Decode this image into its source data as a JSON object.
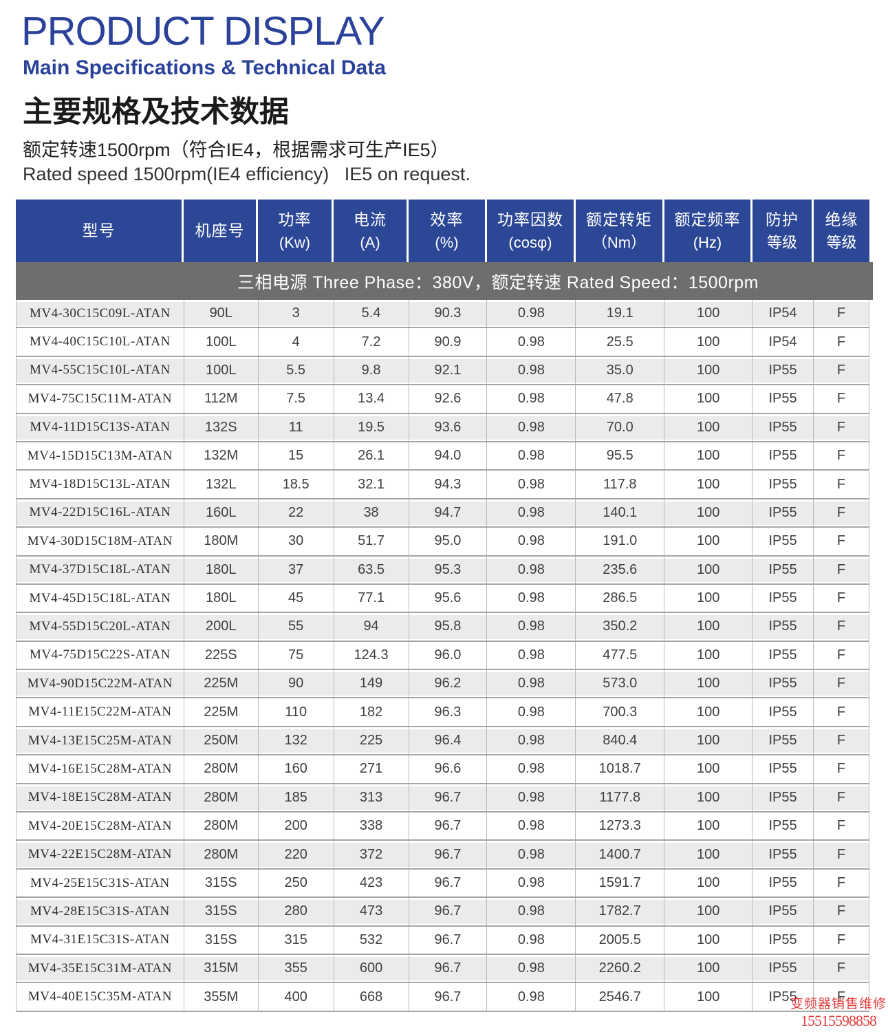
{
  "header": {
    "title": "PRODUCT DISPLAY",
    "subtitle": "Main Specifications & Technical Data",
    "heading_cn": "主要规格及技术数据",
    "spec_cn": "额定转速1500rpm（符合IE4，根据需求可生产IE5）",
    "spec_en": "Rated speed 1500rpm(IE4 efficiency)   IE5 on request."
  },
  "table": {
    "banner": "三相电源 Three Phase：380V，额定转速 Rated Speed：1500rpm",
    "columns": [
      {
        "line1": "型号",
        "line2": ""
      },
      {
        "line1": "机座号",
        "line2": ""
      },
      {
        "line1": "功率",
        "line2": "(Kw)"
      },
      {
        "line1": "电流",
        "line2": "(A)"
      },
      {
        "line1": "效率",
        "line2": "(%)"
      },
      {
        "line1": "功率因数",
        "line2": "(cosφ)"
      },
      {
        "line1": "额定转矩",
        "line2": "（Nm）"
      },
      {
        "line1": "额定频率",
        "line2": "(Hz)"
      },
      {
        "line1": "防护",
        "line2": "等级"
      },
      {
        "line1": "绝缘",
        "line2": "等级"
      }
    ],
    "rows": [
      {
        "shaded": true,
        "values": [
          "MV4-30C15C09L-ATAN",
          "90L",
          "3",
          "5.4",
          "90.3",
          "0.98",
          "19.1",
          "100",
          "IP54",
          "F"
        ]
      },
      {
        "shaded": false,
        "values": [
          "MV4-40C15C10L-ATAN",
          "100L",
          "4",
          "7.2",
          "90.9",
          "0.98",
          "25.5",
          "100",
          "IP54",
          "F"
        ]
      },
      {
        "shaded": true,
        "values": [
          "MV4-55C15C10L-ATAN",
          "100L",
          "5.5",
          "9.8",
          "92.1",
          "0.98",
          "35.0",
          "100",
          "IP55",
          "F"
        ]
      },
      {
        "shaded": false,
        "values": [
          "MV4-75C15C11M-ATAN",
          "112M",
          "7.5",
          "13.4",
          "92.6",
          "0.98",
          "47.8",
          "100",
          "IP55",
          "F"
        ]
      },
      {
        "shaded": true,
        "values": [
          "MV4-11D15C13S-ATAN",
          "132S",
          "11",
          "19.5",
          "93.6",
          "0.98",
          "70.0",
          "100",
          "IP55",
          "F"
        ]
      },
      {
        "shaded": false,
        "values": [
          "MV4-15D15C13M-ATAN",
          "132M",
          "15",
          "26.1",
          "94.0",
          "0.98",
          "95.5",
          "100",
          "IP55",
          "F"
        ]
      },
      {
        "shaded": false,
        "values": [
          "MV4-18D15C13L-ATAN",
          "132L",
          "18.5",
          "32.1",
          "94.3",
          "0.98",
          "117.8",
          "100",
          "IP55",
          "F"
        ]
      },
      {
        "shaded": true,
        "values": [
          "MV4-22D15C16L-ATAN",
          "160L",
          "22",
          "38",
          "94.7",
          "0.98",
          "140.1",
          "100",
          "IP55",
          "F"
        ]
      },
      {
        "shaded": false,
        "values": [
          "MV4-30D15C18M-ATAN",
          "180M",
          "30",
          "51.7",
          "95.0",
          "0.98",
          "191.0",
          "100",
          "IP55",
          "F"
        ]
      },
      {
        "shaded": true,
        "values": [
          "MV4-37D15C18L-ATAN",
          "180L",
          "37",
          "63.5",
          "95.3",
          "0.98",
          "235.6",
          "100",
          "IP55",
          "F"
        ]
      },
      {
        "shaded": false,
        "values": [
          "MV4-45D15C18L-ATAN",
          "180L",
          "45",
          "77.1",
          "95.6",
          "0.98",
          "286.5",
          "100",
          "IP55",
          "F"
        ]
      },
      {
        "shaded": true,
        "values": [
          "MV4-55D15C20L-ATAN",
          "200L",
          "55",
          "94",
          "95.8",
          "0.98",
          "350.2",
          "100",
          "IP55",
          "F"
        ]
      },
      {
        "shaded": false,
        "values": [
          "MV4-75D15C22S-ATAN",
          "225S",
          "75",
          "124.3",
          "96.0",
          "0.98",
          "477.5",
          "100",
          "IP55",
          "F"
        ]
      },
      {
        "shaded": true,
        "values": [
          "MV4-90D15C22M-ATAN",
          "225M",
          "90",
          "149",
          "96.2",
          "0.98",
          "573.0",
          "100",
          "IP55",
          "F"
        ]
      },
      {
        "shaded": false,
        "values": [
          "MV4-11E15C22M-ATAN",
          "225M",
          "110",
          "182",
          "96.3",
          "0.98",
          "700.3",
          "100",
          "IP55",
          "F"
        ]
      },
      {
        "shaded": true,
        "values": [
          "MV4-13E15C25M-ATAN",
          "250M",
          "132",
          "225",
          "96.4",
          "0.98",
          "840.4",
          "100",
          "IP55",
          "F"
        ]
      },
      {
        "shaded": false,
        "values": [
          "MV4-16E15C28M-ATAN",
          "280M",
          "160",
          "271",
          "96.6",
          "0.98",
          "1018.7",
          "100",
          "IP55",
          "F"
        ]
      },
      {
        "shaded": true,
        "values": [
          "MV4-18E15C28M-ATAN",
          "280M",
          "185",
          "313",
          "96.7",
          "0.98",
          "1177.8",
          "100",
          "IP55",
          "F"
        ]
      },
      {
        "shaded": false,
        "values": [
          "MV4-20E15C28M-ATAN",
          "280M",
          "200",
          "338",
          "96.7",
          "0.98",
          "1273.3",
          "100",
          "IP55",
          "F"
        ]
      },
      {
        "shaded": true,
        "values": [
          "MV4-22E15C28M-ATAN",
          "280M",
          "220",
          "372",
          "96.7",
          "0.98",
          "1400.7",
          "100",
          "IP55",
          "F"
        ]
      },
      {
        "shaded": false,
        "values": [
          "MV4-25E15C31S-ATAN",
          "315S",
          "250",
          "423",
          "96.7",
          "0.98",
          "1591.7",
          "100",
          "IP55",
          "F"
        ]
      },
      {
        "shaded": true,
        "values": [
          "MV4-28E15C31S-ATAN",
          "315S",
          "280",
          "473",
          "96.7",
          "0.98",
          "1782.7",
          "100",
          "IP55",
          "F"
        ]
      },
      {
        "shaded": false,
        "values": [
          "MV4-31E15C31S-ATAN",
          "315S",
          "315",
          "532",
          "96.7",
          "0.98",
          "2005.5",
          "100",
          "IP55",
          "F"
        ]
      },
      {
        "shaded": true,
        "values": [
          "MV4-35E15C31M-ATAN",
          "315M",
          "355",
          "600",
          "96.7",
          "0.98",
          "2260.2",
          "100",
          "IP55",
          "F"
        ]
      },
      {
        "shaded": false,
        "values": [
          "MV4-40E15C35M-ATAN",
          "355M",
          "400",
          "668",
          "96.7",
          "0.98",
          "2546.7",
          "100",
          "IP55",
          "F"
        ]
      }
    ]
  },
  "watermark": {
    "line1": "变频器销售维修",
    "line2": "15515598858"
  },
  "colors": {
    "title_blue": "#2a4299",
    "header_bg": "#2c4796",
    "banner_bg": "#6e6e6e",
    "row_shaded_bg": "#ebebeb",
    "watermark_red": "#e23d3d"
  }
}
